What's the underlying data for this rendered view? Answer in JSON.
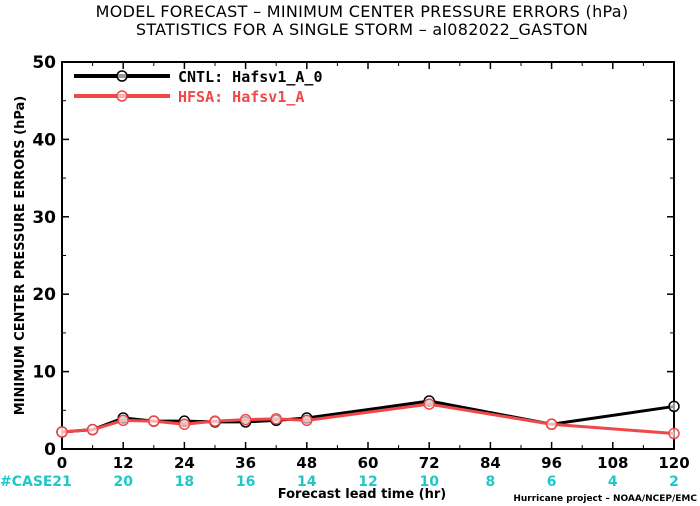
{
  "chart_data": {
    "type": "line",
    "title": "MODEL FORECAST – MINIMUM CENTER PRESSURE ERRORS (hPa)",
    "subtitle": "STATISTICS FOR A SINGLE STORM – al082022_GASTON",
    "xlabel": "Forecast lead time (hr)",
    "ylabel": "MINIMUM CENTER PRESSURE ERRORS (hPa)",
    "xlim": [
      0,
      120
    ],
    "ylim": [
      0,
      50
    ],
    "xticks": [
      0,
      12,
      24,
      36,
      48,
      60,
      72,
      84,
      96,
      108,
      120
    ],
    "yticks": [
      0,
      10,
      20,
      30,
      40,
      50
    ],
    "grid": false,
    "legend_position": "top-left",
    "series": [
      {
        "name": "CNTL: Hafsv1_A_0",
        "color": "#000000",
        "x": [
          0,
          6,
          12,
          18,
          24,
          30,
          36,
          42,
          48,
          72,
          96,
          120
        ],
        "y": [
          2.2,
          2.5,
          4.0,
          3.6,
          3.6,
          3.5,
          3.5,
          3.7,
          4.0,
          6.2,
          3.2,
          5.5
        ]
      },
      {
        "name": "HFSA: Hafsv1_A",
        "color": "#f04848",
        "x": [
          0,
          6,
          12,
          18,
          24,
          30,
          36,
          42,
          48,
          72,
          96,
          120
        ],
        "y": [
          2.2,
          2.5,
          3.7,
          3.6,
          3.2,
          3.6,
          3.8,
          3.9,
          3.7,
          5.8,
          3.2,
          2.0
        ]
      }
    ],
    "case_label": "#CASE",
    "case_counts": [
      {
        "x": 0,
        "n": "21"
      },
      {
        "x": 12,
        "n": "20"
      },
      {
        "x": 24,
        "n": "18"
      },
      {
        "x": 36,
        "n": "16"
      },
      {
        "x": 48,
        "n": "14"
      },
      {
        "x": 60,
        "n": "12"
      },
      {
        "x": 72,
        "n": "10"
      },
      {
        "x": 84,
        "n": "8"
      },
      {
        "x": 96,
        "n": "6"
      },
      {
        "x": 108,
        "n": "4"
      },
      {
        "x": 120,
        "n": "2"
      }
    ],
    "case_color": "#1ec8c8",
    "credit": "Hurricane project – NOAA/NCEP/EMC"
  }
}
